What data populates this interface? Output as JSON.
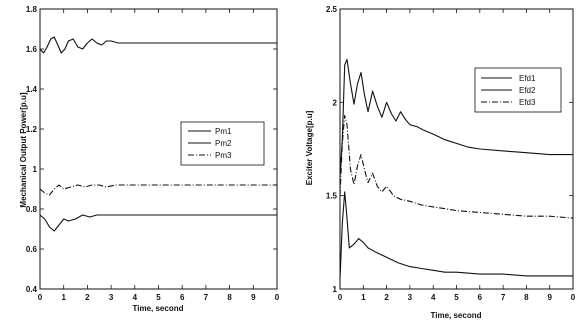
{
  "chart_data": [
    {
      "type": "line",
      "title": "",
      "xlabel": "Time, second",
      "ylabel": "Mechanical Output Power[p.u]",
      "xlim": [
        0,
        10
      ],
      "ylim": [
        0.4,
        1.8
      ],
      "xticks": [
        "0",
        "1",
        "2",
        "3",
        "4",
        "5",
        "6",
        "7",
        "8",
        "9",
        "0"
      ],
      "yticks": [
        "0.4",
        "0.6",
        "0.8",
        "1",
        "1.2",
        "1.4",
        "1.6",
        "1.8"
      ],
      "grid": false,
      "legend_position": "center-right",
      "series": [
        {
          "name": "Pm1",
          "style": "solid",
          "x": [
            0,
            0.15,
            0.3,
            0.45,
            0.6,
            0.75,
            0.9,
            1.05,
            1.2,
            1.4,
            1.6,
            1.8,
            2.0,
            2.2,
            2.4,
            2.6,
            2.8,
            3.0,
            3.3,
            3.6,
            4.0,
            5.0,
            6.0,
            7.0,
            8.0,
            9.0,
            10.0
          ],
          "values": [
            1.6,
            1.58,
            1.61,
            1.65,
            1.66,
            1.62,
            1.58,
            1.6,
            1.64,
            1.65,
            1.61,
            1.6,
            1.63,
            1.65,
            1.63,
            1.62,
            1.64,
            1.64,
            1.63,
            1.63,
            1.63,
            1.63,
            1.63,
            1.63,
            1.63,
            1.63,
            1.63
          ]
        },
        {
          "name": "Pm2",
          "style": "solid",
          "x": [
            0,
            0.2,
            0.4,
            0.6,
            0.8,
            1.0,
            1.2,
            1.5,
            1.8,
            2.1,
            2.4,
            2.7,
            3.0,
            3.5,
            4.0,
            5.0,
            6.0,
            7.0,
            8.0,
            9.0,
            10.0
          ],
          "values": [
            0.77,
            0.75,
            0.71,
            0.69,
            0.72,
            0.75,
            0.74,
            0.75,
            0.77,
            0.76,
            0.77,
            0.77,
            0.77,
            0.77,
            0.77,
            0.77,
            0.77,
            0.77,
            0.77,
            0.77,
            0.77
          ],
          "values_note": ""
        },
        {
          "name": "Pm3",
          "style": "dashdot",
          "x": [
            0,
            0.2,
            0.4,
            0.6,
            0.8,
            1.0,
            1.3,
            1.6,
            1.9,
            2.2,
            2.5,
            2.8,
            3.2,
            3.6,
            4.0,
            5.0,
            6.0,
            7.0,
            8.0,
            9.0,
            10.0
          ],
          "values": [
            0.9,
            0.88,
            0.87,
            0.9,
            0.92,
            0.9,
            0.91,
            0.92,
            0.91,
            0.92,
            0.92,
            0.91,
            0.92,
            0.92,
            0.92,
            0.92,
            0.92,
            0.92,
            0.92,
            0.92,
            0.92
          ]
        }
      ]
    },
    {
      "type": "line",
      "title": "",
      "xlabel": "Time, second",
      "ylabel": "Exciter Voltage[p.u]",
      "xlim": [
        0,
        10
      ],
      "ylim": [
        1,
        2.5
      ],
      "xticks": [
        "0",
        "1",
        "2",
        "3",
        "4",
        "5",
        "6",
        "7",
        "8",
        "9",
        "0"
      ],
      "yticks": [
        "1",
        "1.5",
        "2",
        "2.5"
      ],
      "grid": false,
      "legend_position": "top-right",
      "series": [
        {
          "name": "Efd1",
          "style": "solid",
          "x": [
            0,
            0.1,
            0.2,
            0.3,
            0.45,
            0.6,
            0.75,
            0.9,
            1.05,
            1.2,
            1.4,
            1.6,
            1.8,
            2.0,
            2.2,
            2.4,
            2.6,
            2.8,
            3.0,
            3.3,
            3.6,
            4.0,
            4.5,
            5.0,
            5.5,
            6.0,
            7.0,
            8.0,
            9.0,
            10.0
          ],
          "values": [
            1.6,
            1.8,
            2.2,
            2.23,
            2.1,
            1.99,
            2.1,
            2.16,
            2.04,
            1.95,
            2.06,
            1.98,
            1.92,
            2.0,
            1.94,
            1.9,
            1.95,
            1.91,
            1.88,
            1.87,
            1.85,
            1.83,
            1.8,
            1.78,
            1.76,
            1.75,
            1.74,
            1.73,
            1.72,
            1.72
          ]
        },
        {
          "name": "Efd2",
          "style": "solid",
          "x": [
            0,
            0.1,
            0.2,
            0.3,
            0.4,
            0.6,
            0.8,
            1.0,
            1.2,
            1.5,
            2.0,
            2.5,
            3.0,
            3.5,
            4.0,
            4.5,
            5.0,
            6.0,
            7.0,
            8.0,
            9.0,
            10.0
          ],
          "values": [
            1.05,
            1.35,
            1.52,
            1.38,
            1.22,
            1.24,
            1.27,
            1.25,
            1.22,
            1.2,
            1.17,
            1.14,
            1.12,
            1.11,
            1.1,
            1.09,
            1.09,
            1.08,
            1.08,
            1.07,
            1.07,
            1.07
          ]
        },
        {
          "name": "Efd3",
          "style": "dashdot",
          "x": [
            0,
            0.1,
            0.2,
            0.3,
            0.45,
            0.6,
            0.75,
            0.9,
            1.05,
            1.2,
            1.4,
            1.6,
            1.8,
            2.0,
            2.3,
            2.6,
            3.0,
            3.5,
            4.0,
            4.5,
            5.0,
            6.0,
            7.0,
            8.0,
            9.0,
            10.0
          ],
          "values": [
            1.5,
            1.78,
            1.93,
            1.88,
            1.64,
            1.56,
            1.66,
            1.72,
            1.64,
            1.57,
            1.62,
            1.55,
            1.52,
            1.55,
            1.5,
            1.48,
            1.47,
            1.45,
            1.44,
            1.43,
            1.42,
            1.41,
            1.4,
            1.39,
            1.39,
            1.38
          ]
        }
      ]
    }
  ]
}
